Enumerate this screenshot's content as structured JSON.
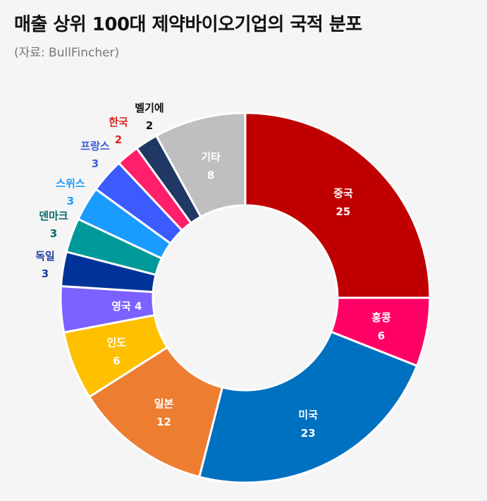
{
  "title": "매출 상위 100대 제약바이오기업의 국적 분포",
  "subtitle": "(자료: BullFincher)",
  "chart_data": {
    "type": "pie",
    "donut": true,
    "categories": [
      "중국",
      "홍콩",
      "미국",
      "일본",
      "인도",
      "영국",
      "독일",
      "덴마크",
      "스위스",
      "프랑스",
      "한국",
      "벨기에",
      "기타"
    ],
    "values": [
      25,
      6,
      23,
      12,
      6,
      4,
      3,
      3,
      3,
      3,
      2,
      2,
      8
    ],
    "colors": [
      "#c00000",
      "#ff0066",
      "#0070c0",
      "#ed7d31",
      "#ffc000",
      "#7b61ff",
      "#003399",
      "#009999",
      "#1a9cff",
      "#3b5bff",
      "#ff1f6b",
      "#1f3864",
      "#bfbfbf"
    ],
    "label_colors": {
      "독일": "#1f3d99",
      "덴마크": "#0a6b6b",
      "스위스": "#1a9cff",
      "프랑스": "#3b5bdb",
      "한국": "#e02020",
      "벨기에": "#111111"
    }
  }
}
